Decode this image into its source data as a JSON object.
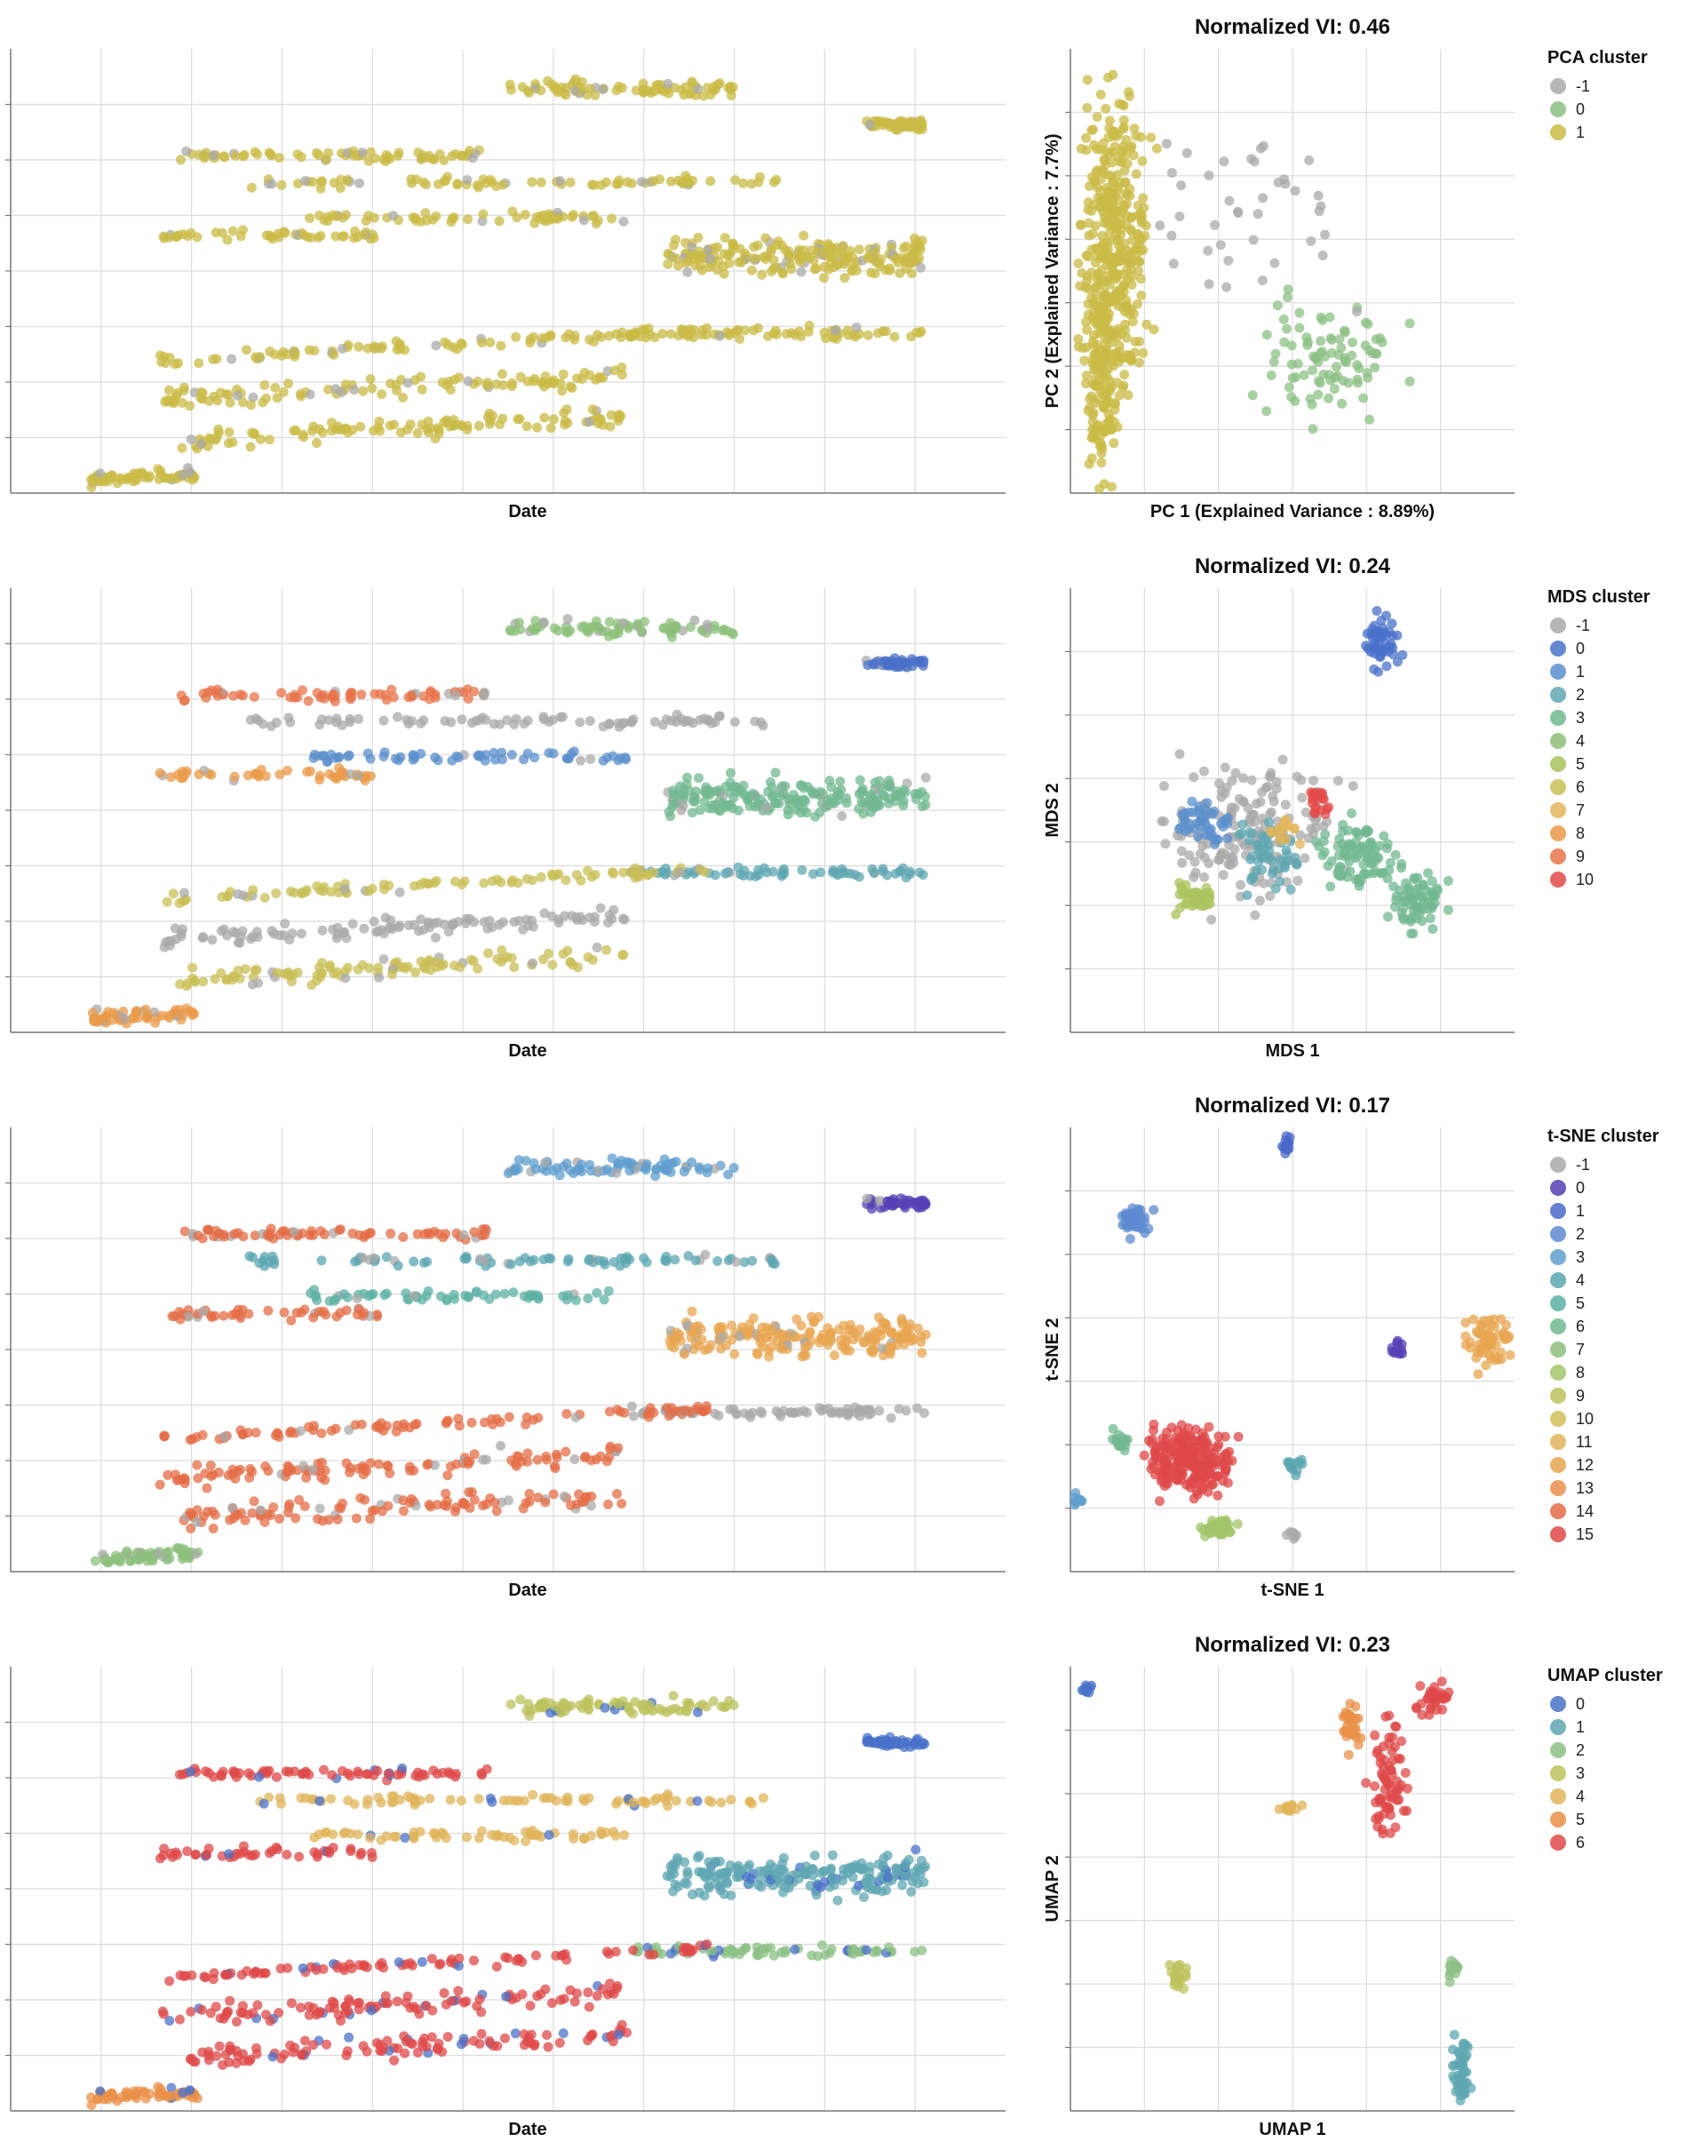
{
  "chart_data": [
    {
      "type": "scatter",
      "panel": "pca",
      "title": "Normalized VI: 0.46",
      "timeline_xlabel": "Date",
      "embedding_xlabel": "PC 1 (Explained Variance : 8.89%)",
      "embedding_ylabel": "PC 2 (Explained Variance : 7.7%)",
      "legend_title": "PCA cluster",
      "grid": true,
      "legend_position": "right",
      "series": [
        {
          "name": "-1",
          "color": "#a9a9a9"
        },
        {
          "name": "0",
          "color": "#8cc084"
        },
        {
          "name": "1",
          "color": "#c9bb45"
        }
      ]
    },
    {
      "type": "scatter",
      "panel": "mds",
      "title": "Normalized VI: 0.24",
      "timeline_xlabel": "Date",
      "embedding_xlabel": "MDS 1",
      "embedding_ylabel": "MDS 2",
      "legend_title": "MDS cluster",
      "grid": true,
      "legend_position": "right",
      "series": [
        {
          "name": "-1",
          "color": "#a9a9a9"
        },
        {
          "name": "0",
          "color": "#4a72c9"
        },
        {
          "name": "1",
          "color": "#5b8fcc"
        },
        {
          "name": "2",
          "color": "#5fa7b2"
        },
        {
          "name": "3",
          "color": "#72b890"
        },
        {
          "name": "4",
          "color": "#8cc079"
        },
        {
          "name": "5",
          "color": "#a9c35c"
        },
        {
          "name": "6",
          "color": "#c9bf55"
        },
        {
          "name": "7",
          "color": "#e3b55a"
        },
        {
          "name": "8",
          "color": "#e99a48"
        },
        {
          "name": "9",
          "color": "#e8734a"
        },
        {
          "name": "10",
          "color": "#e34a4a"
        }
      ]
    },
    {
      "type": "scatter",
      "panel": "tsne",
      "title": "Normalized VI: 0.17",
      "timeline_xlabel": "Date",
      "embedding_xlabel": "t-SNE 1",
      "embedding_ylabel": "t-SNE 2",
      "legend_title": "t-SNE cluster",
      "grid": true,
      "legend_position": "right",
      "series": [
        {
          "name": "-1",
          "color": "#a9a9a9"
        },
        {
          "name": "0",
          "color": "#5540b5"
        },
        {
          "name": "1",
          "color": "#4a68c9"
        },
        {
          "name": "2",
          "color": "#5e8ad0"
        },
        {
          "name": "3",
          "color": "#5f9ecd"
        },
        {
          "name": "4",
          "color": "#5aa6b0"
        },
        {
          "name": "5",
          "color": "#5db2a4"
        },
        {
          "name": "6",
          "color": "#72b890"
        },
        {
          "name": "7",
          "color": "#8cc07c"
        },
        {
          "name": "8",
          "color": "#a2c46a"
        },
        {
          "name": "9",
          "color": "#bcc25c"
        },
        {
          "name": "10",
          "color": "#d0c058"
        },
        {
          "name": "11",
          "color": "#e0b45a"
        },
        {
          "name": "12",
          "color": "#e8a650"
        },
        {
          "name": "13",
          "color": "#e8904c"
        },
        {
          "name": "14",
          "color": "#e46c46"
        },
        {
          "name": "15",
          "color": "#df4848"
        }
      ]
    },
    {
      "type": "scatter",
      "panel": "umap",
      "title": "Normalized VI: 0.23",
      "timeline_xlabel": "Date",
      "embedding_xlabel": "UMAP 1",
      "embedding_ylabel": "UMAP 2",
      "legend_title": "UMAP cluster",
      "grid": true,
      "legend_position": "right",
      "series": [
        {
          "name": "0",
          "color": "#4a72c9"
        },
        {
          "name": "1",
          "color": "#5fa7b2"
        },
        {
          "name": "2",
          "color": "#8cc084"
        },
        {
          "name": "3",
          "color": "#bcc25c"
        },
        {
          "name": "4",
          "color": "#e0b45a"
        },
        {
          "name": "5",
          "color": "#e99048"
        },
        {
          "name": "6",
          "color": "#df4848"
        }
      ]
    }
  ]
}
